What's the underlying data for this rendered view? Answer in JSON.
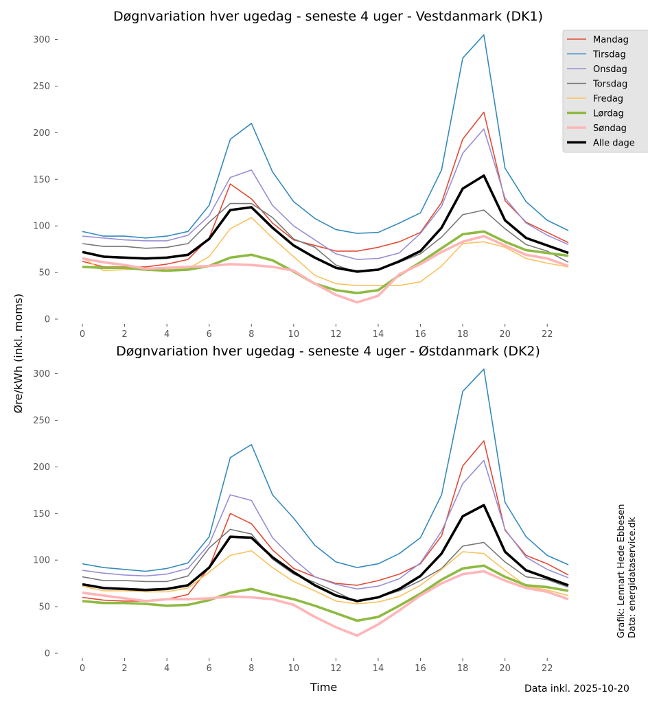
{
  "figure": {
    "ylabel": "Øre/kWh (inkl. moms)",
    "xlabel": "Time",
    "credit_line1": "Grafik: Lennart Hede Ebbesen",
    "credit_line2": "Data: energidataservice.dk",
    "note": "Data inkl. 2025-10-20"
  },
  "legend": {
    "placement": "top-right of upper chart",
    "entries": [
      "Mandag",
      "Tirsdag",
      "Onsdag",
      "Torsdag",
      "Fredag",
      "Lørdag",
      "Søndag",
      "Alle dage"
    ]
  },
  "series_style": [
    {
      "name": "Mandag",
      "color": "#e24a33",
      "width": "thin"
    },
    {
      "name": "Tirsdag",
      "color": "#348abd",
      "width": "thin"
    },
    {
      "name": "Onsdag",
      "color": "#988ed5",
      "width": "thin"
    },
    {
      "name": "Torsdag",
      "color": "#777777",
      "width": "thin"
    },
    {
      "name": "Fredag",
      "color": "#fbc15e",
      "width": "thin"
    },
    {
      "name": "Lørdag",
      "color": "#8eba42",
      "width": "thick"
    },
    {
      "name": "Søndag",
      "color": "#ffb5b8",
      "width": "thick"
    },
    {
      "name": "Alle dage",
      "color": "#000000",
      "width": "thick"
    }
  ],
  "chart_data": [
    {
      "type": "line",
      "title": "Døgnvariation hver ugedag - seneste 4 uger - Vestdanmark (DK1)",
      "xlim": [
        0,
        23
      ],
      "ylim": [
        0,
        310
      ],
      "xticks": [
        0,
        2,
        4,
        6,
        8,
        10,
        12,
        14,
        16,
        18,
        20,
        22
      ],
      "yticks": [
        0,
        50,
        100,
        150,
        200,
        250,
        300
      ],
      "grid": false,
      "x": [
        0,
        1,
        2,
        3,
        4,
        5,
        6,
        7,
        8,
        9,
        10,
        11,
        12,
        13,
        14,
        15,
        16,
        17,
        18,
        19,
        20,
        21,
        22,
        23
      ],
      "series": [
        {
          "name": "Mandag",
          "values": [
            62,
            56,
            56,
            56,
            59,
            64,
            87,
            145,
            129,
            103,
            85,
            79,
            73,
            73,
            77,
            83,
            93,
            125,
            193,
            222,
            127,
            104,
            93,
            82
          ]
        },
        {
          "name": "Tirsdag",
          "values": [
            94,
            89,
            89,
            87,
            89,
            94,
            122,
            193,
            210,
            158,
            126,
            108,
            96,
            92,
            93,
            103,
            114,
            160,
            280,
            305,
            162,
            126,
            106,
            95
          ]
        },
        {
          "name": "Onsdag",
          "values": [
            89,
            87,
            85,
            84,
            84,
            90,
            111,
            152,
            160,
            122,
            100,
            85,
            70,
            64,
            65,
            71,
            92,
            121,
            178,
            204,
            130,
            103,
            90,
            80
          ]
        },
        {
          "name": "Torsdag",
          "values": [
            81,
            78,
            78,
            76,
            77,
            81,
            104,
            124,
            124,
            109,
            86,
            77,
            58,
            50,
            53,
            61,
            70,
            88,
            112,
            117,
            97,
            80,
            73,
            61
          ]
        },
        {
          "name": "Fredag",
          "values": [
            66,
            52,
            53,
            54,
            53,
            54,
            67,
            97,
            109,
            87,
            67,
            47,
            38,
            36,
            36,
            36,
            40,
            57,
            81,
            83,
            77,
            65,
            60,
            56
          ]
        },
        {
          "name": "Lørdag",
          "values": [
            56,
            55,
            55,
            53,
            52,
            53,
            57,
            66,
            69,
            63,
            51,
            38,
            31,
            28,
            31,
            47,
            61,
            76,
            91,
            94,
            83,
            74,
            71,
            68
          ]
        },
        {
          "name": "Søndag",
          "values": [
            65,
            61,
            58,
            54,
            55,
            56,
            57,
            59,
            58,
            56,
            52,
            38,
            26,
            18,
            25,
            48,
            59,
            72,
            83,
            89,
            79,
            69,
            65,
            57
          ]
        },
        {
          "name": "Alle dage",
          "values": [
            72,
            67,
            66,
            65,
            66,
            69,
            86,
            117,
            120,
            98,
            79,
            66,
            55,
            51,
            53,
            62,
            73,
            98,
            140,
            154,
            106,
            87,
            79,
            71
          ]
        }
      ]
    },
    {
      "type": "line",
      "title": "Døgnvariation hver ugedag - seneste 4 uger - Østdanmark (DK2)",
      "xlim": [
        0,
        23
      ],
      "ylim": [
        0,
        310
      ],
      "xticks": [
        0,
        2,
        4,
        6,
        8,
        10,
        12,
        14,
        16,
        18,
        20,
        22
      ],
      "yticks": [
        0,
        50,
        100,
        150,
        200,
        250,
        300
      ],
      "grid": false,
      "x": [
        0,
        1,
        2,
        3,
        4,
        5,
        6,
        7,
        8,
        9,
        10,
        11,
        12,
        13,
        14,
        15,
        16,
        17,
        18,
        19,
        20,
        21,
        22,
        23
      ],
      "series": [
        {
          "name": "Mandag",
          "values": [
            60,
            57,
            56,
            56,
            58,
            63,
            92,
            150,
            139,
            111,
            91,
            82,
            75,
            73,
            78,
            85,
            96,
            126,
            201,
            228,
            132,
            105,
            96,
            84
          ]
        },
        {
          "name": "Tirsdag",
          "values": [
            96,
            92,
            90,
            88,
            91,
            97,
            125,
            210,
            224,
            170,
            145,
            116,
            98,
            92,
            96,
            107,
            124,
            170,
            281,
            305,
            162,
            125,
            105,
            95
          ]
        },
        {
          "name": "Onsdag",
          "values": [
            89,
            86,
            84,
            83,
            85,
            91,
            117,
            170,
            164,
            124,
            101,
            82,
            74,
            69,
            72,
            80,
            97,
            131,
            182,
            207,
            133,
            103,
            90,
            81
          ]
        },
        {
          "name": "Torsdag",
          "values": [
            82,
            78,
            78,
            77,
            77,
            83,
            113,
            133,
            128,
            101,
            85,
            76,
            66,
            55,
            60,
            67,
            78,
            91,
            115,
            119,
            98,
            82,
            79,
            71
          ]
        },
        {
          "name": "Fredag",
          "values": [
            72,
            67,
            67,
            66,
            66,
            70,
            87,
            105,
            110,
            92,
            77,
            67,
            56,
            53,
            55,
            61,
            73,
            90,
            109,
            107,
            89,
            72,
            68,
            62
          ]
        },
        {
          "name": "Lørdag",
          "values": [
            56,
            54,
            54,
            53,
            51,
            52,
            57,
            65,
            69,
            63,
            58,
            51,
            43,
            35,
            39,
            51,
            64,
            79,
            91,
            94,
            82,
            73,
            71,
            67
          ]
        },
        {
          "name": "Søndag",
          "values": [
            65,
            62,
            59,
            56,
            58,
            58,
            59,
            61,
            60,
            58,
            52,
            39,
            28,
            19,
            31,
            46,
            62,
            75,
            85,
            88,
            78,
            70,
            66,
            58
          ]
        },
        {
          "name": "Alle dage",
          "values": [
            74,
            70,
            69,
            68,
            69,
            73,
            92,
            125,
            124,
            103,
            87,
            73,
            62,
            56,
            60,
            69,
            83,
            107,
            147,
            159,
            109,
            89,
            81,
            73
          ]
        }
      ]
    }
  ]
}
